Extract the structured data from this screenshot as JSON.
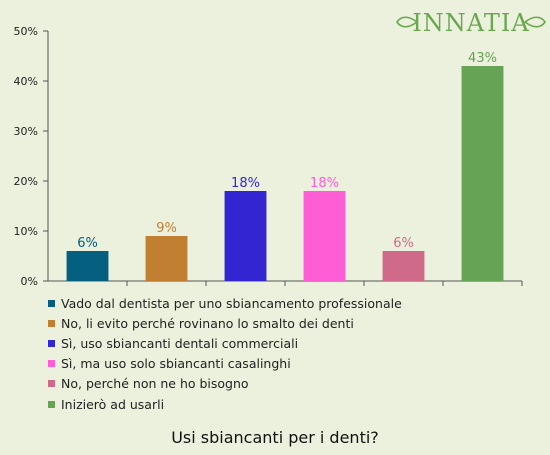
{
  "brand": {
    "logo_text": "INNATIA",
    "color": "#6aa84f"
  },
  "chart_data": {
    "type": "bar",
    "title": "Usi sbiancanti per i denti?",
    "xlabel": "",
    "ylabel": "",
    "ylim": [
      0,
      50
    ],
    "yticks": [
      "0%",
      "10%",
      "20%",
      "30%",
      "40%",
      "50%"
    ],
    "grid": false,
    "legend_position": "bottom",
    "categories": [
      "Vado dal dentista per uno sbiancamento professionale",
      "No, li evito perché rovinano lo smalto dei denti",
      "Sì, uso sbiancanti dentali commerciali",
      "Sì, ma uso solo sbiancanti casalinghi",
      "No, perché non ne ho bisogno",
      "Inizierò ad usarli"
    ],
    "values": [
      6,
      9,
      18,
      18,
      6,
      43
    ],
    "value_labels": [
      "6%",
      "9%",
      "18%",
      "18%",
      "6%",
      "43%"
    ],
    "colors": [
      "#05607f",
      "#c07f31",
      "#3425d3",
      "#ff5dd6",
      "#d06a8a",
      "#66a354"
    ],
    "label_colors": [
      "#05607f",
      "#c07f31",
      "#3425d3",
      "#ff5dd6",
      "#d06a8a",
      "#66a354"
    ]
  }
}
